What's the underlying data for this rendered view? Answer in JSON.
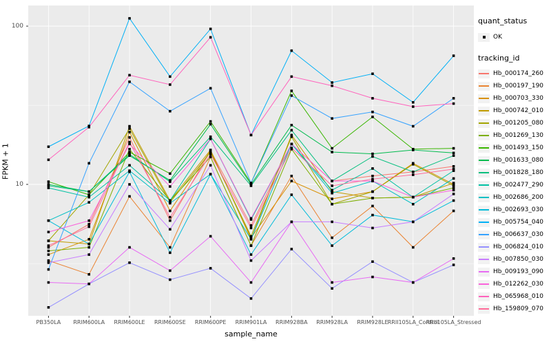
{
  "figure": {
    "background": "#FFFFFF",
    "panel_background": "#EBEBEB",
    "grid_color": "#FFFFFF",
    "tick_text_color": "#4D4D4D",
    "marker_color": "#000000"
  },
  "legend": {
    "quant_status_title": "quant_status",
    "quant_status_ok_label": "OK",
    "tracking_id_title": "tracking_id"
  },
  "chart_data": {
    "type": "line",
    "title": "",
    "xlabel": "sample_name",
    "ylabel": "FPKM + 1",
    "y_scale": "log10",
    "y_ticks": [
      100,
      10
    ],
    "y_minor_ticks": [
      31.6,
      3.16
    ],
    "ylim": [
      1.45,
      135
    ],
    "grid": true,
    "legend_position": "right",
    "marker": "filled-black-square",
    "categories": [
      "PB350LA",
      "RRIM600LA",
      "RRIM600LE",
      "RRIM600SE",
      "RRIM600PE",
      "RRIM901LA",
      "RRIM928BA",
      "RRIM928LA",
      "RRIM928LE",
      "RRII105LA_Control",
      "RRII105LA_Stressed"
    ],
    "series": [
      {
        "name": "Hb_000174_260",
        "color": "#F8766D",
        "values": [
          4.0,
          5.6,
          19.8,
          5.9,
          16.3,
          5.5,
          18.0,
          10.5,
          11.3,
          12.0,
          13.0
        ]
      },
      {
        "name": "Hb_000197_190",
        "color": "#EA8331",
        "values": [
          3.3,
          2.7,
          8.4,
          4.0,
          14.9,
          4.1,
          11.3,
          4.6,
          7.3,
          4.0,
          6.8
        ]
      },
      {
        "name": "Hb_000703_330",
        "color": "#D89000",
        "values": [
          3.6,
          4.5,
          21.4,
          6.8,
          16.3,
          4.6,
          10.5,
          8.1,
          9.0,
          13.6,
          10.0
        ]
      },
      {
        "name": "Hb_000742_010",
        "color": "#C09B00",
        "values": [
          4.4,
          4.2,
          23.3,
          7.9,
          16.5,
          4.5,
          20.5,
          9.0,
          8.2,
          8.3,
          10.2
        ]
      },
      {
        "name": "Hb_001205_080",
        "color": "#A3A500",
        "values": [
          4.4,
          8.6,
          22.5,
          7.7,
          16.0,
          4.7,
          20.0,
          7.5,
          9.0,
          13.4,
          9.8
        ]
      },
      {
        "name": "Hb_001269_130",
        "color": "#7CAE00",
        "values": [
          3.8,
          4.0,
          16.7,
          7.9,
          14.9,
          4.1,
          16.7,
          7.5,
          8.2,
          8.3,
          9.5
        ]
      },
      {
        "name": "Hb_001493_150",
        "color": "#39B600",
        "values": [
          10.4,
          8.6,
          16.0,
          11.7,
          25.0,
          10.2,
          39.0,
          16.9,
          26.7,
          16.7,
          16.9
        ]
      },
      {
        "name": "Hb_001633_080",
        "color": "#00BB4E",
        "values": [
          10.0,
          9.0,
          15.2,
          10.6,
          24.0,
          10.0,
          23.7,
          16.0,
          15.6,
          16.5,
          15.8
        ]
      },
      {
        "name": "Hb_001828_180",
        "color": "#00BF7D",
        "values": [
          9.8,
          9.0,
          15.5,
          10.4,
          20.0,
          9.8,
          22.0,
          10.5,
          15.0,
          12.0,
          15.2
        ]
      },
      {
        "name": "Hb_002477_290",
        "color": "#00C1A3",
        "values": [
          9.5,
          8.3,
          13.2,
          7.9,
          19.4,
          6.0,
          18.0,
          9.2,
          12.6,
          8.3,
          12.2
        ]
      },
      {
        "name": "Hb_002686_200",
        "color": "#00BFC4",
        "values": [
          5.9,
          7.7,
          12.2,
          7.6,
          11.6,
          4.5,
          18.0,
          8.8,
          10.5,
          7.5,
          10.9
        ]
      },
      {
        "name": "Hb_002693_030",
        "color": "#00BBDA",
        "values": [
          5.9,
          4.2,
          12.0,
          3.7,
          11.6,
          3.6,
          8.6,
          4.1,
          6.4,
          5.8,
          7.9
        ]
      },
      {
        "name": "Hb_005754_040",
        "color": "#00B0F6",
        "values": [
          17.3,
          23.4,
          112.0,
          48.0,
          96.0,
          20.5,
          70.0,
          44.0,
          50.0,
          33.0,
          65.0
        ]
      },
      {
        "name": "Hb_006637_030",
        "color": "#35A2FF",
        "values": [
          2.9,
          13.6,
          44.5,
          29.0,
          40.5,
          10.2,
          36.4,
          26.1,
          28.7,
          23.3,
          35.0
        ]
      },
      {
        "name": "Hb_006824_010",
        "color": "#9590FF",
        "values": [
          1.67,
          2.35,
          3.2,
          2.5,
          2.95,
          1.9,
          3.9,
          2.2,
          3.25,
          2.4,
          3.1
        ]
      },
      {
        "name": "Hb_007850_030",
        "color": "#C77CFF",
        "values": [
          3.2,
          3.6,
          10.0,
          5.2,
          13.2,
          3.3,
          5.8,
          5.8,
          5.3,
          5.8,
          8.7
        ]
      },
      {
        "name": "Hb_009193_090",
        "color": "#E76BF3",
        "values": [
          2.4,
          2.35,
          4.0,
          2.85,
          4.7,
          2.4,
          5.8,
          2.4,
          2.6,
          2.4,
          3.4
        ]
      },
      {
        "name": "Hb_012262_030",
        "color": "#FA62DB",
        "values": [
          5.0,
          5.9,
          18.0,
          9.7,
          19.4,
          6.1,
          18.0,
          10.5,
          10.5,
          8.3,
          9.2
        ]
      },
      {
        "name": "Hb_065968_010",
        "color": "#FF62BC",
        "values": [
          14.3,
          23.0,
          49.0,
          42.7,
          85.0,
          20.5,
          48.0,
          42.0,
          35.0,
          31.0,
          32.4
        ]
      },
      {
        "name": "Hb_159809_070",
        "color": "#FF6A98",
        "values": [
          4.1,
          5.4,
          18.5,
          6.2,
          15.5,
          5.3,
          17.0,
          9.8,
          10.8,
          11.5,
          12.5
        ]
      }
    ]
  }
}
